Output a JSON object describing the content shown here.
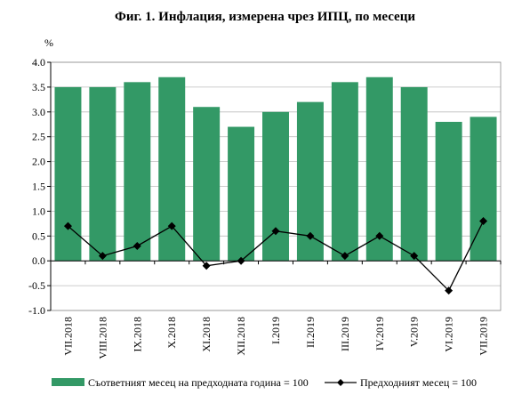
{
  "chart_data": {
    "type": "bar",
    "title": "Фиг. 1. Инфлация, измерена чрез ИПЦ, по месеци",
    "ylabel": "%",
    "ylim": [
      -1.0,
      4.0
    ],
    "yticks": [
      "4.0",
      "3.5",
      "3.0",
      "2.5",
      "2.0",
      "1.5",
      "1.0",
      "0.5",
      "0.0",
      "-0.5",
      "-1.0"
    ],
    "grid": true,
    "legend_position": "bottom",
    "categories": [
      "VII.2018",
      "VIII.2018",
      "IX.2018",
      "X.2018",
      "XI.2018",
      "XII.2018",
      "I.2019",
      "II.2019",
      "III.2019",
      "IV.2019",
      "V.2019",
      "VI.2019",
      "VII.2019"
    ],
    "series": [
      {
        "name": "Съответният месец на предходната година = 100",
        "type": "bar",
        "color": "#339966",
        "values": [
          3.5,
          3.5,
          3.6,
          3.7,
          3.1,
          2.7,
          3.0,
          3.2,
          3.6,
          3.7,
          3.5,
          2.8,
          2.9
        ]
      },
      {
        "name": "Предходният месец = 100",
        "type": "line",
        "color": "#000000",
        "marker": "diamond",
        "values": [
          0.7,
          0.1,
          0.3,
          0.7,
          -0.1,
          0.0,
          0.6,
          0.5,
          0.1,
          0.5,
          0.1,
          -0.6,
          0.8
        ]
      }
    ]
  }
}
